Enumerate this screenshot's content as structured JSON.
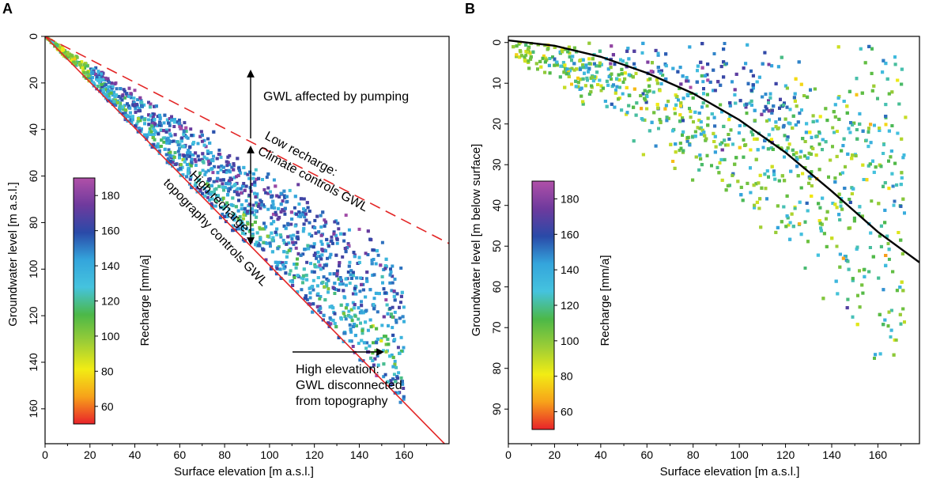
{
  "figure": {
    "panels": [
      "A",
      "B"
    ]
  },
  "chart_data": [
    {
      "panel": "A",
      "type": "scatter",
      "xlabel": "Surface elevation [m a.s.l.]",
      "ylabel": "Groundwater level [m a.s.l.]",
      "xlim": [
        0,
        180
      ],
      "ylim": [
        0,
        175
      ],
      "y_inverted": true,
      "xticks": [
        0,
        20,
        40,
        60,
        80,
        100,
        120,
        140,
        160
      ],
      "yticks": [
        0,
        20,
        40,
        60,
        80,
        100,
        120,
        140,
        160
      ],
      "colorbar": {
        "label": "Recharge [mm/a]",
        "range": [
          50,
          190
        ],
        "ticks": [
          60,
          80,
          100,
          120,
          140,
          160,
          180
        ],
        "colors": [
          "#e8222a",
          "#f7a21a",
          "#f2ec14",
          "#9ccd36",
          "#4cb848",
          "#45c3de",
          "#34a5dc",
          "#2a4aa8",
          "#6e3a9d",
          "#b050a8"
        ]
      },
      "lines": [
        {
          "name": "High recharge: topography controls GWL",
          "style": "solid",
          "color": "#e32626",
          "points": [
            [
              0,
              0
            ],
            [
              180,
              177
            ]
          ]
        },
        {
          "name": "Low recharge: Climate controls GWL",
          "style": "dashed",
          "color": "#e32626",
          "points": [
            [
              0,
              0
            ],
            [
              180,
              89
            ]
          ]
        }
      ],
      "annotations": {
        "pumping": "GWL affected by pumping",
        "low_line1": "Low recharge:",
        "low_line2": "Climate controls GWL",
        "high_line1": "High recharge:",
        "high_line2": "topography controls GWL",
        "elev_line1": "High elevation:",
        "elev_line2": "GWL disconnected",
        "elev_line3": "from topography"
      },
      "point_cloud": {
        "n_points": 2200,
        "x_range": [
          0,
          160
        ],
        "spread_between_lines": true
      }
    },
    {
      "panel": "B",
      "type": "scatter",
      "xlabel": "Surface elevation [m a.s.l.]",
      "ylabel": "Groundwater level [m below surface]",
      "xlim": [
        0,
        178
      ],
      "ylim": [
        -1.5,
        98.5
      ],
      "y_inverted": true,
      "xticks": [
        0,
        20,
        40,
        60,
        80,
        100,
        120,
        140,
        160
      ],
      "yticks": [
        0,
        10,
        20,
        30,
        40,
        50,
        60,
        70,
        80,
        90
      ],
      "colorbar": {
        "label": "Recharge [mm/a]",
        "range": [
          50,
          190
        ],
        "ticks": [
          60,
          80,
          100,
          120,
          140,
          160,
          180
        ],
        "colors": [
          "#e8222a",
          "#f7a21a",
          "#f2ec14",
          "#9ccd36",
          "#4cb848",
          "#45c3de",
          "#34a5dc",
          "#2a4aa8",
          "#6e3a9d",
          "#b050a8"
        ]
      },
      "lines": [
        {
          "name": "trend",
          "style": "solid",
          "color": "#000000",
          "points": [
            [
              0,
              -0.5
            ],
            [
              20,
              0.8
            ],
            [
              40,
              3.5
            ],
            [
              60,
              7.5
            ],
            [
              80,
              12.5
            ],
            [
              100,
              19
            ],
            [
              120,
              27
            ],
            [
              140,
              36.5
            ],
            [
              160,
              46.5
            ],
            [
              178,
              54
            ]
          ]
        }
      ],
      "point_cloud": {
        "n_points": 2200,
        "x_range": [
          0,
          175
        ],
        "spread_below_curve": true
      }
    }
  ]
}
